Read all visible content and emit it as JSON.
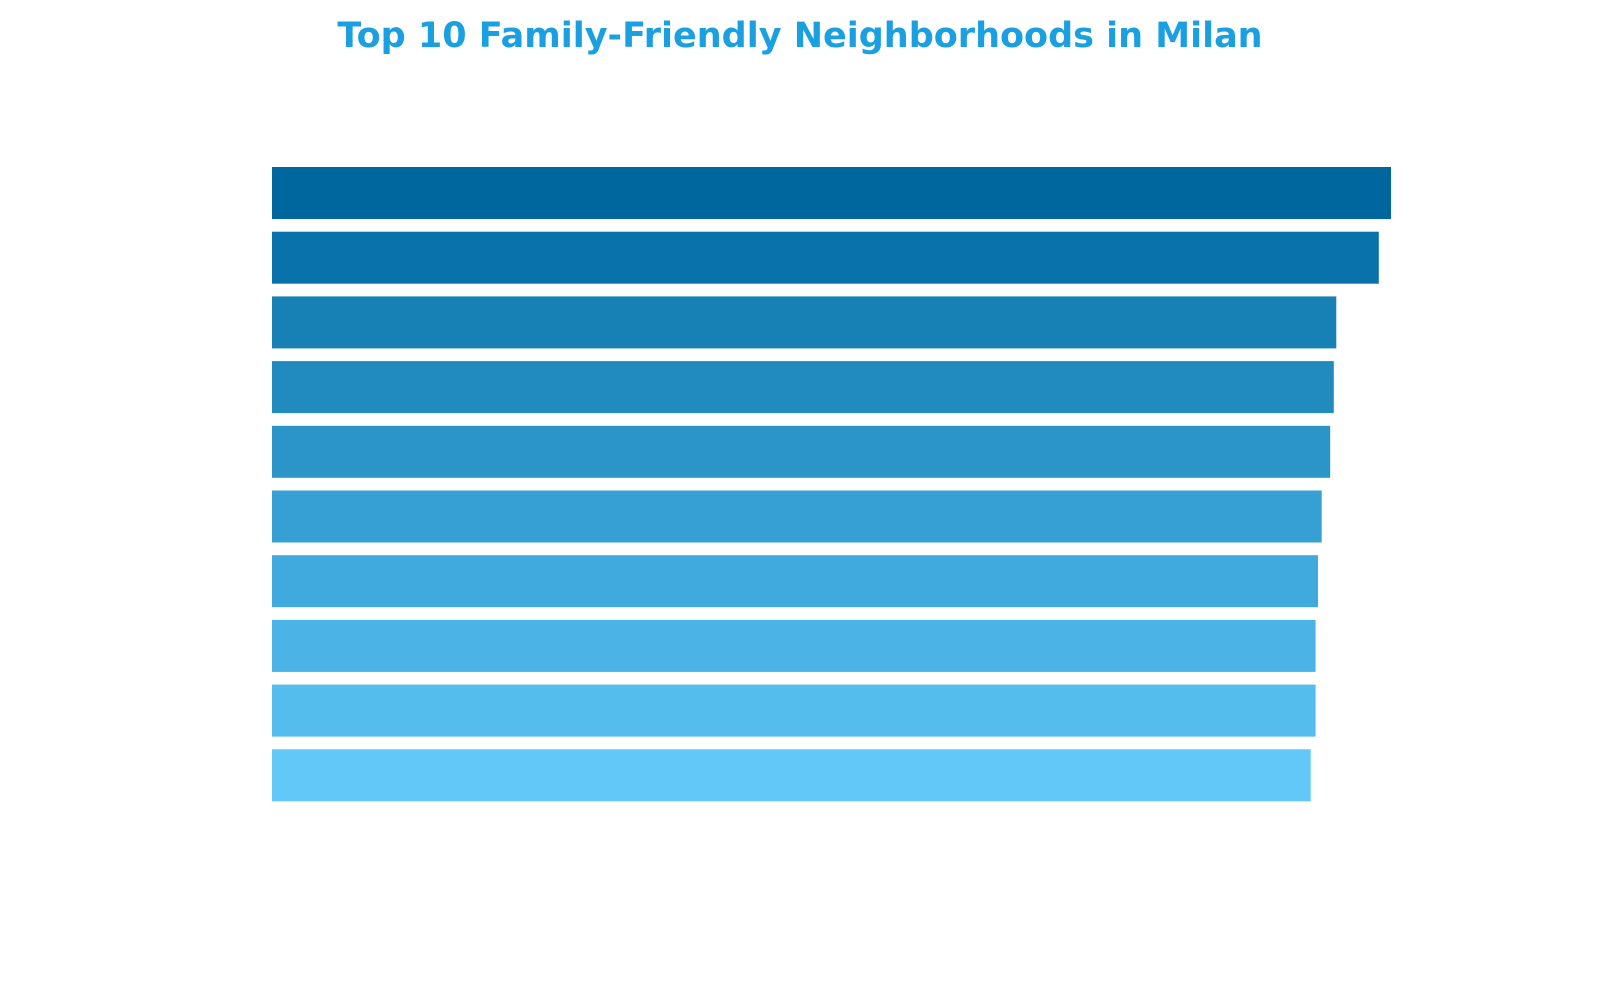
{
  "chart_data": {
    "type": "bar",
    "orientation": "horizontal",
    "title": "Top 10 Family-Friendly Neighborhoods in Milan",
    "xlabel": "",
    "ylabel": "",
    "xlim": [
      0,
      9.2
    ],
    "grid": false,
    "legend": "none",
    "values": [
      9.2,
      9.1,
      8.75,
      8.73,
      8.7,
      8.63,
      8.6,
      8.58,
      8.58,
      8.54
    ],
    "colors": [
      "#00679e",
      "#0a72aa",
      "#1780b5",
      "#218abf",
      "#2b95c9",
      "#36a0d4",
      "#40a9de",
      "#4bb3e6",
      "#55bdee",
      "#61c8f8"
    ]
  }
}
